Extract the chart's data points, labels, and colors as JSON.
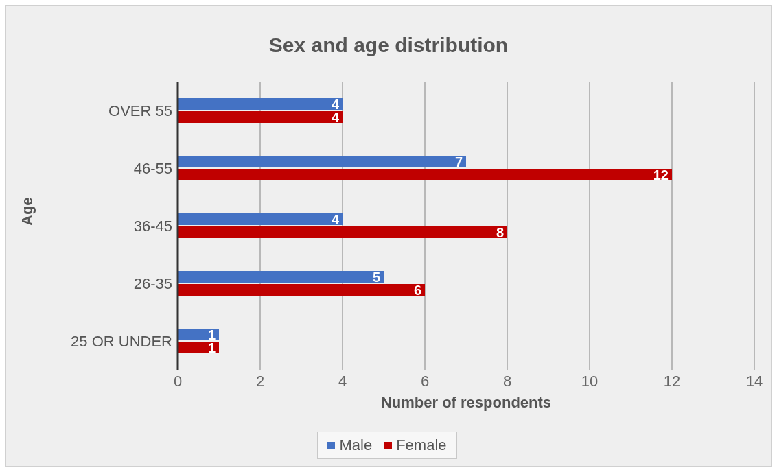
{
  "chart_data": {
    "type": "bar",
    "orientation": "horizontal",
    "title": "Sex and age distribution",
    "xlabel": "Number of respondents",
    "ylabel": "Age",
    "categories": [
      "OVER 55",
      "46-55",
      "36-45",
      "26-35",
      "25 OR UNDER"
    ],
    "series": [
      {
        "name": "Male",
        "color": "#4472c4",
        "values": [
          4,
          7,
          4,
          5,
          1
        ]
      },
      {
        "name": "Female",
        "color": "#c00000",
        "values": [
          4,
          12,
          8,
          6,
          1
        ]
      }
    ],
    "xlim": [
      0,
      14
    ],
    "xticks": [
      0,
      2,
      4,
      6,
      8,
      10,
      12,
      14
    ],
    "grid": "x",
    "legend": "bottom",
    "data_labels": true
  }
}
